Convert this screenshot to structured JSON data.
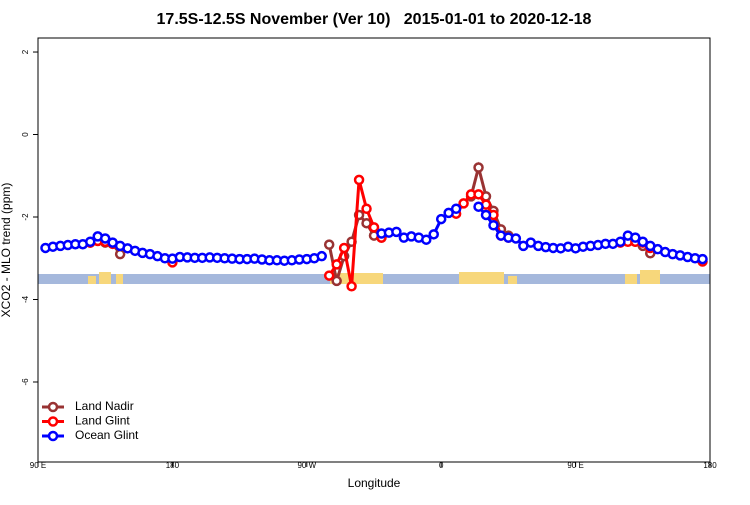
{
  "chart_data": {
    "type": "line",
    "title": "17.5S-12.5S November (Ver 10)   2015-01-01 to 2020-12-18",
    "x_label": "Longitude",
    "y_label": "XCO2 - MLO trend (ppm)",
    "x": [
      95,
      100,
      105,
      110,
      115,
      120,
      125,
      130,
      135,
      140,
      145,
      150,
      155,
      160,
      165,
      170,
      175,
      180,
      185,
      190,
      195,
      200,
      205,
      210,
      215,
      220,
      225,
      230,
      235,
      240,
      245,
      250,
      255,
      260,
      265,
      270,
      275,
      280,
      285,
      290,
      295,
      300,
      305,
      310,
      315,
      320,
      325,
      330,
      335,
      340,
      345,
      350,
      355,
      360,
      365,
      370,
      375,
      380,
      385,
      390,
      395,
      400,
      405,
      410,
      415,
      420,
      425,
      430,
      435,
      440,
      445,
      450,
      455,
      460,
      465,
      470,
      475,
      480,
      485,
      490,
      495,
      500,
      505,
      510,
      515,
      520,
      525,
      530,
      535
    ],
    "series": [
      {
        "name": "Land Nadir",
        "color": "#993333",
        "values": [
          null,
          null,
          null,
          null,
          null,
          null,
          -2.62,
          -2.58,
          -2.62,
          -2.65,
          -2.9,
          null,
          null,
          null,
          null,
          null,
          null,
          null,
          null,
          null,
          null,
          null,
          null,
          null,
          null,
          null,
          null,
          null,
          null,
          null,
          null,
          null,
          null,
          null,
          null,
          null,
          null,
          null,
          -2.67,
          -3.55,
          -2.95,
          -2.6,
          -1.95,
          -2.15,
          -2.45,
          -2.5,
          null,
          null,
          null,
          null,
          null,
          null,
          null,
          null,
          null,
          null,
          null,
          -1.5,
          -0.8,
          -1.5,
          -1.85,
          -2.3,
          -2.45,
          null,
          null,
          null,
          null,
          null,
          null,
          null,
          null,
          null,
          null,
          null,
          null,
          null,
          null,
          null,
          null,
          -2.6,
          -2.7,
          -2.88,
          null,
          null,
          null,
          null,
          null,
          null,
          null
        ]
      },
      {
        "name": "Land Glint",
        "color": "#ff0000",
        "values": [
          null,
          null,
          null,
          null,
          null,
          null,
          -2.62,
          -2.58,
          -2.6,
          -2.65,
          null,
          null,
          null,
          null,
          null,
          null,
          null,
          -3.1,
          null,
          null,
          null,
          null,
          null,
          null,
          null,
          null,
          null,
          null,
          null,
          null,
          null,
          null,
          null,
          null,
          null,
          null,
          null,
          null,
          -3.42,
          -3.15,
          -2.75,
          -3.68,
          -1.1,
          -1.8,
          -2.25,
          -2.5,
          null,
          null,
          null,
          null,
          null,
          null,
          null,
          null,
          null,
          -1.92,
          -1.67,
          -1.45,
          -1.45,
          -1.7,
          -1.95,
          -2.45,
          -2.5,
          null,
          null,
          null,
          null,
          null,
          null,
          null,
          null,
          null,
          null,
          null,
          null,
          null,
          null,
          -2.62,
          -2.6,
          -2.6,
          -2.62,
          -2.75,
          null,
          null,
          null,
          null,
          null,
          null,
          -3.08
        ]
      },
      {
        "name": "Ocean Glint",
        "color": "#0000ff",
        "values": [
          -2.75,
          -2.72,
          -2.7,
          -2.68,
          -2.66,
          -2.66,
          -2.6,
          -2.47,
          -2.52,
          -2.62,
          -2.7,
          -2.76,
          -2.82,
          -2.87,
          -2.9,
          -2.95,
          -3.0,
          -3.01,
          -2.97,
          -2.98,
          -2.99,
          -2.99,
          -2.98,
          -2.99,
          -3.0,
          -3.01,
          -3.02,
          -3.02,
          -3.01,
          -3.03,
          -3.05,
          -3.05,
          -3.06,
          -3.05,
          -3.03,
          -3.02,
          -3.0,
          -2.95,
          null,
          null,
          null,
          null,
          null,
          null,
          null,
          -2.4,
          -2.38,
          -2.36,
          -2.5,
          -2.47,
          -2.5,
          -2.55,
          -2.42,
          -2.05,
          -1.9,
          -1.8,
          null,
          null,
          -1.75,
          -1.95,
          -2.2,
          -2.45,
          -2.5,
          -2.52,
          -2.7,
          -2.62,
          -2.7,
          -2.73,
          -2.75,
          -2.76,
          -2.72,
          -2.76,
          -2.72,
          -2.7,
          -2.68,
          -2.65,
          -2.65,
          -2.6,
          -2.45,
          -2.5,
          -2.6,
          -2.7,
          -2.78,
          -2.85,
          -2.9,
          -2.93,
          -2.97,
          -3.0,
          -3.02
        ]
      }
    ],
    "xlim": [
      90,
      540
    ],
    "xticks": [
      {
        "value": 90,
        "label": "90 E"
      },
      {
        "value": 180,
        "label": "180"
      },
      {
        "value": 270,
        "label": "90 W"
      },
      {
        "value": 360,
        "label": "0"
      },
      {
        "value": 450,
        "label": "90 E"
      },
      {
        "value": 540,
        "label": "180"
      }
    ],
    "ylim": [
      -7.94,
      2.34
    ],
    "yticks": [
      2,
      0,
      -2,
      -4,
      -6
    ],
    "legend": "bottom-left"
  }
}
